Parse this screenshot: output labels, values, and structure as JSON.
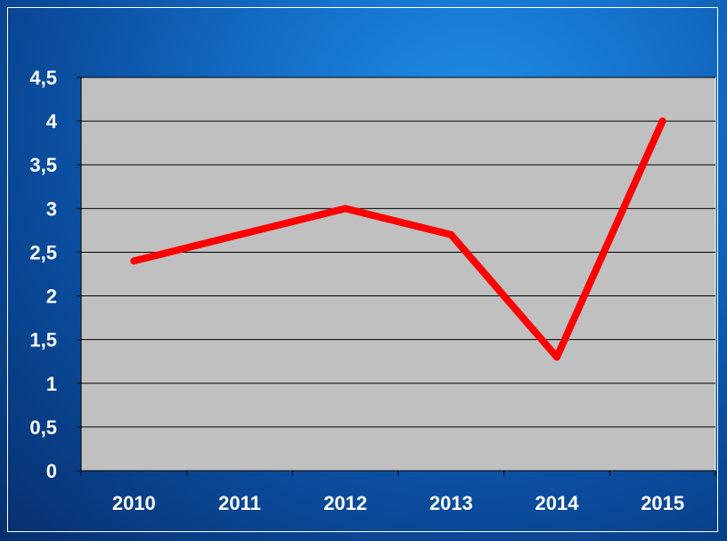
{
  "chart_data": {
    "type": "line",
    "categories": [
      "2010",
      "2011",
      "2012",
      "2013",
      "2014",
      "2015"
    ],
    "values": [
      2.4,
      2.7,
      3.0,
      2.7,
      1.3,
      4.0
    ],
    "ylim": [
      0,
      4.5
    ],
    "y_ticks": [
      0,
      0.5,
      1,
      1.5,
      2,
      2.5,
      3,
      3.5,
      4,
      4.5
    ],
    "y_tick_labels": [
      "0",
      "0,5",
      "1",
      "1,5",
      "2",
      "2,5",
      "3",
      "3,5",
      "4",
      "4,5"
    ],
    "grid": true,
    "line_color": "#ff0000",
    "plot_background": "#c0c0c0"
  }
}
